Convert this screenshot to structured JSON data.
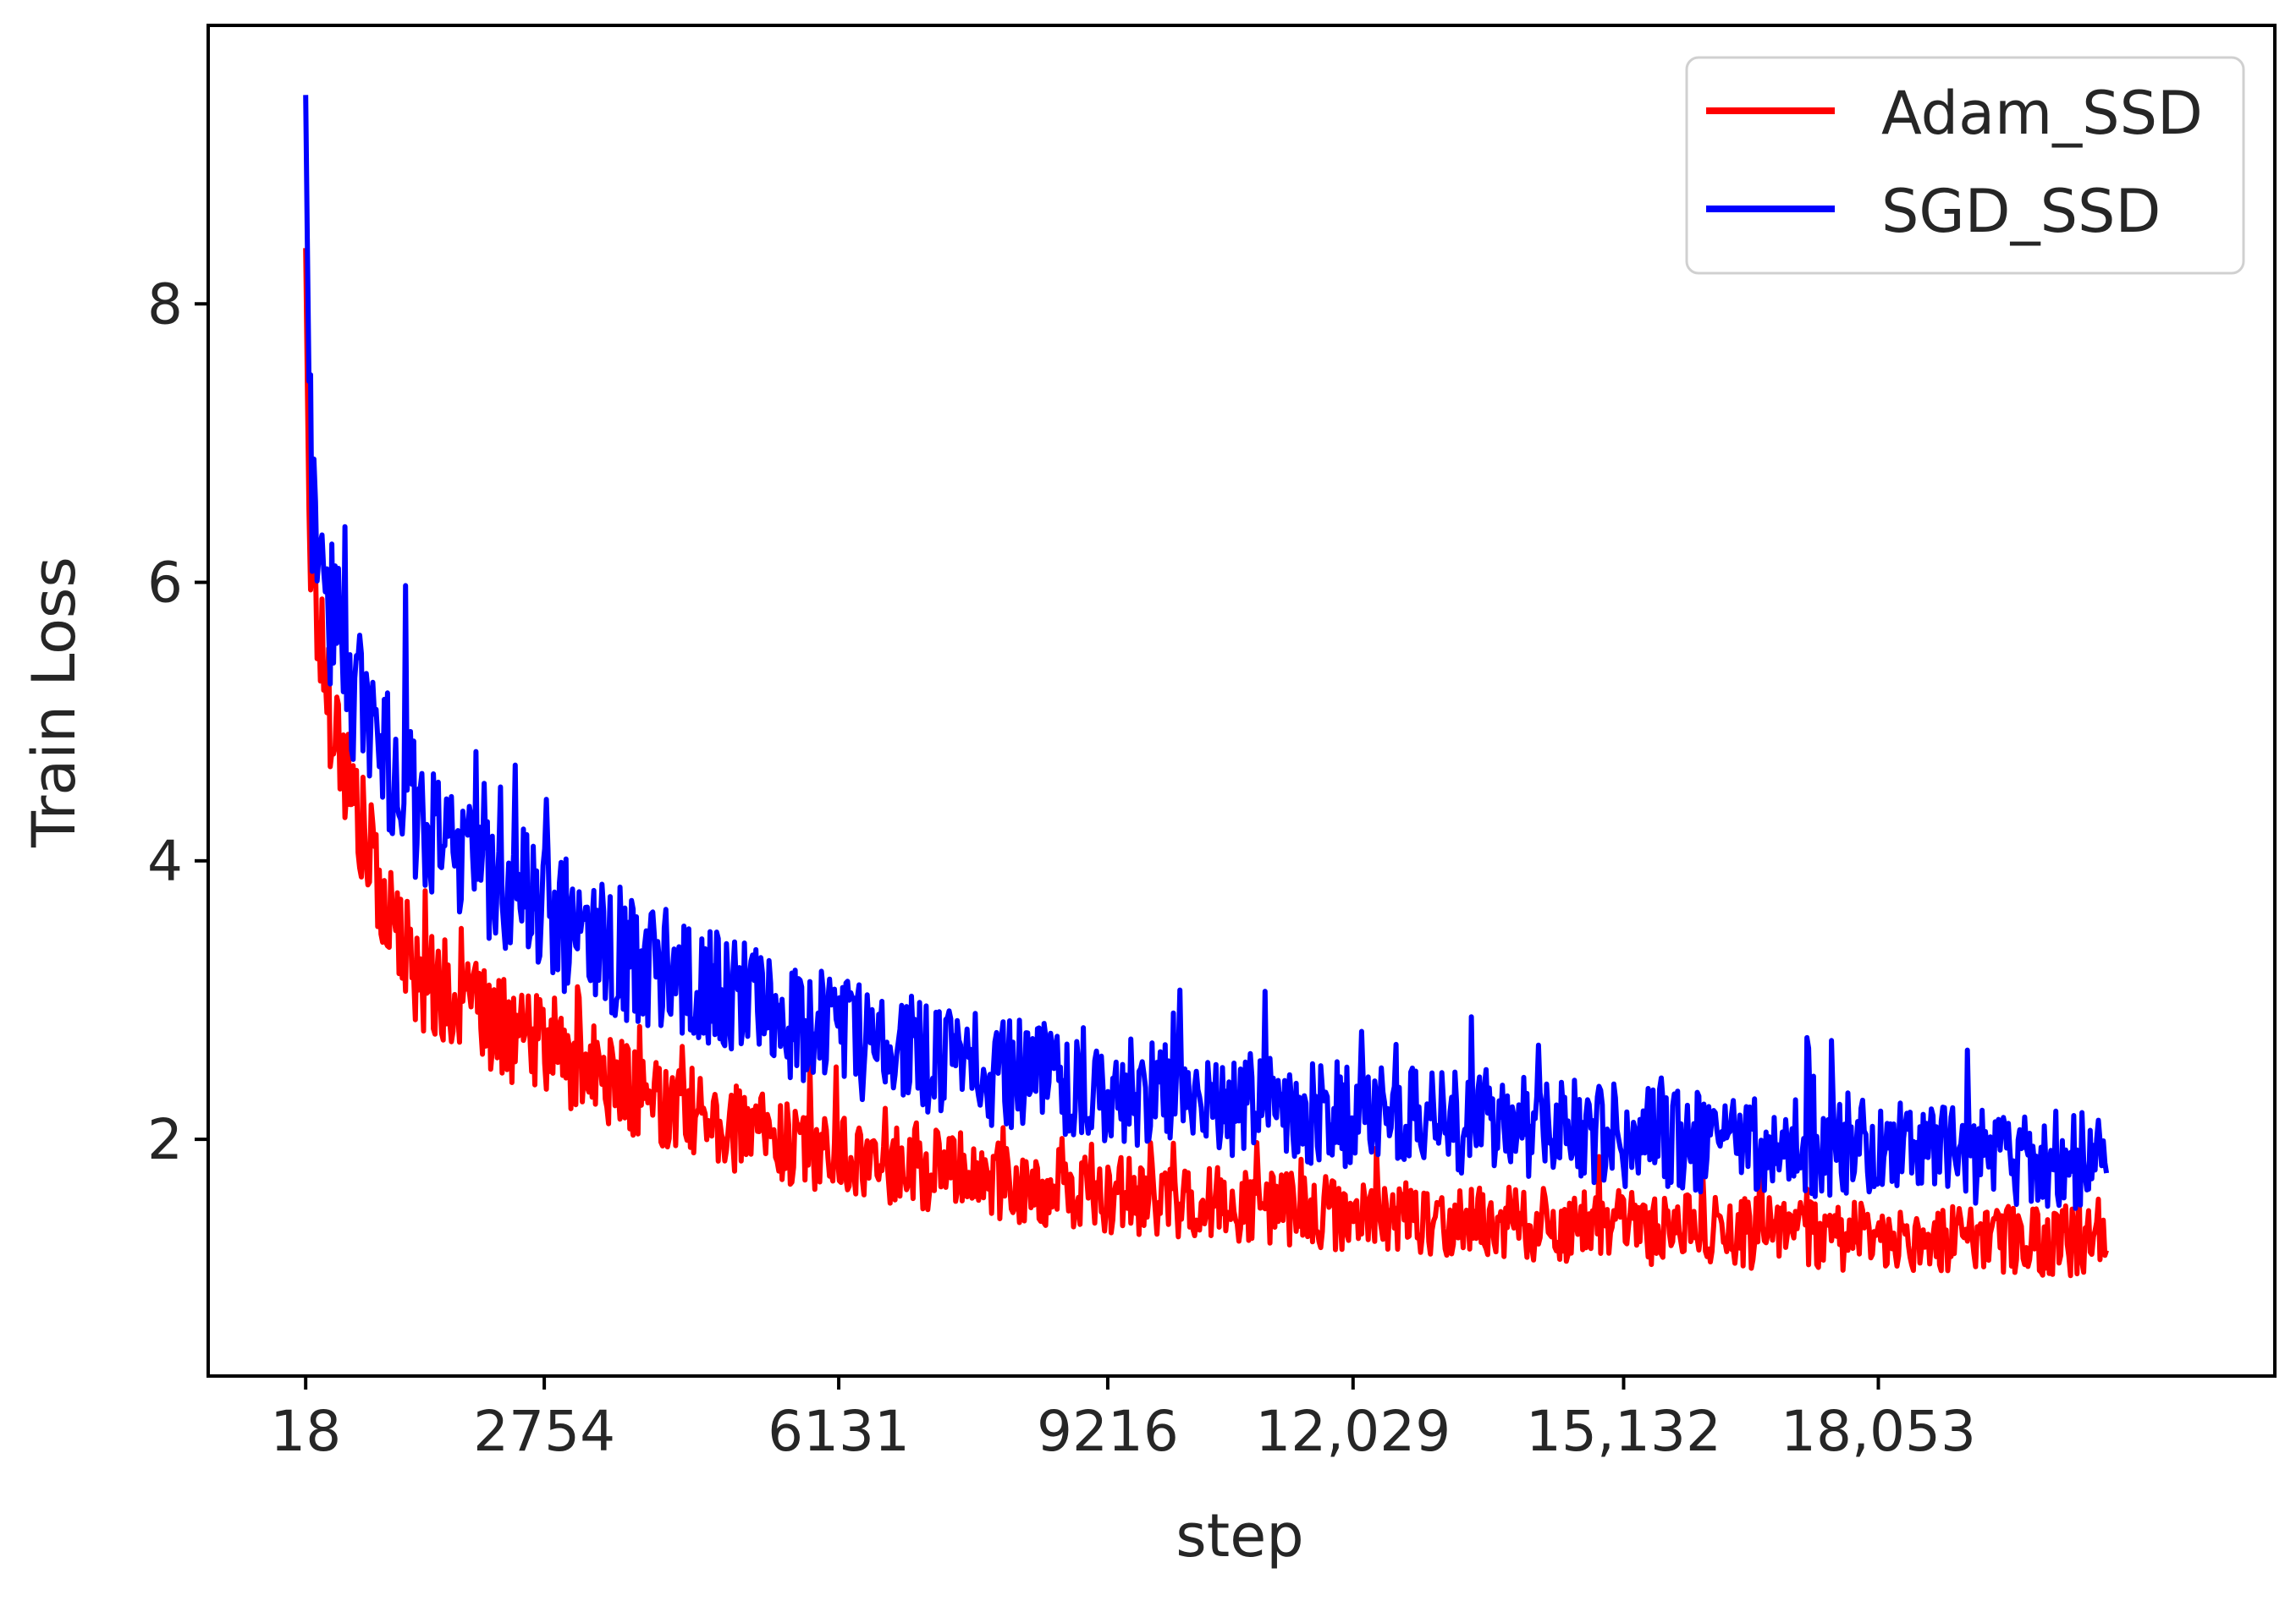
{
  "chart_data": {
    "type": "line",
    "title": "",
    "xlabel": "step",
    "ylabel": "Train Loss",
    "x_ticks": [
      "18",
      "2754",
      "6131",
      "9216",
      "12,029",
      "15,132",
      "18,053"
    ],
    "y_ticks": [
      2,
      4,
      6,
      8
    ],
    "xlim": [
      -1100,
      22600
    ],
    "ylim": [
      0.3,
      10.0
    ],
    "x_range": [
      18,
      20670
    ],
    "grid": false,
    "legend_position": "top-right",
    "series": [
      {
        "name": "Adam_SSD",
        "color": "#ff0000",
        "x": [
          18,
          60,
          120,
          200,
          350,
          500,
          700,
          1000,
          1300,
          1700,
          2100,
          2600,
          3100,
          3600,
          4200,
          4800,
          5400,
          6000,
          6600,
          7200,
          7800,
          8400,
          9000,
          9600,
          10200,
          10800,
          11400,
          12000,
          12600,
          13200,
          13800,
          14400,
          15000,
          15600,
          16200,
          16800,
          17400,
          18000,
          18600,
          19200,
          19800,
          20400,
          20670
        ],
        "values": [
          8.4,
          6.3,
          6.0,
          5.5,
          5.0,
          4.6,
          4.1,
          3.6,
          3.2,
          3.0,
          2.85,
          2.7,
          2.55,
          2.4,
          2.25,
          2.1,
          2.0,
          1.92,
          1.85,
          1.78,
          1.72,
          1.67,
          1.62,
          1.58,
          1.55,
          1.52,
          1.49,
          1.46,
          1.44,
          1.42,
          1.4,
          1.38,
          1.37,
          1.35,
          1.34,
          1.32,
          1.31,
          1.3,
          1.29,
          1.28,
          1.27,
          1.26,
          1.4
        ]
      },
      {
        "name": "SGD_SSD",
        "color": "#0000ff",
        "x": [
          18,
          60,
          120,
          200,
          350,
          500,
          700,
          1000,
          1300,
          1700,
          2100,
          2600,
          3100,
          3600,
          4200,
          4800,
          5400,
          6000,
          6600,
          7200,
          7800,
          8400,
          9000,
          9600,
          10200,
          10800,
          11400,
          12000,
          12600,
          13200,
          13800,
          14400,
          15000,
          15600,
          16200,
          16800,
          17400,
          18000,
          18600,
          19200,
          19800,
          20400,
          20670
        ],
        "values": [
          9.5,
          7.2,
          6.3,
          6.0,
          5.6,
          5.3,
          5.0,
          4.7,
          4.4,
          4.1,
          3.9,
          3.7,
          3.5,
          3.35,
          3.2,
          3.05,
          2.9,
          2.78,
          2.68,
          2.6,
          2.52,
          2.46,
          2.4,
          2.35,
          2.3,
          2.26,
          2.22,
          2.18,
          2.15,
          2.12,
          2.09,
          2.06,
          2.03,
          2.0,
          1.98,
          1.96,
          1.94,
          1.92,
          1.9,
          1.88,
          1.86,
          1.85,
          1.95
        ]
      }
    ]
  }
}
